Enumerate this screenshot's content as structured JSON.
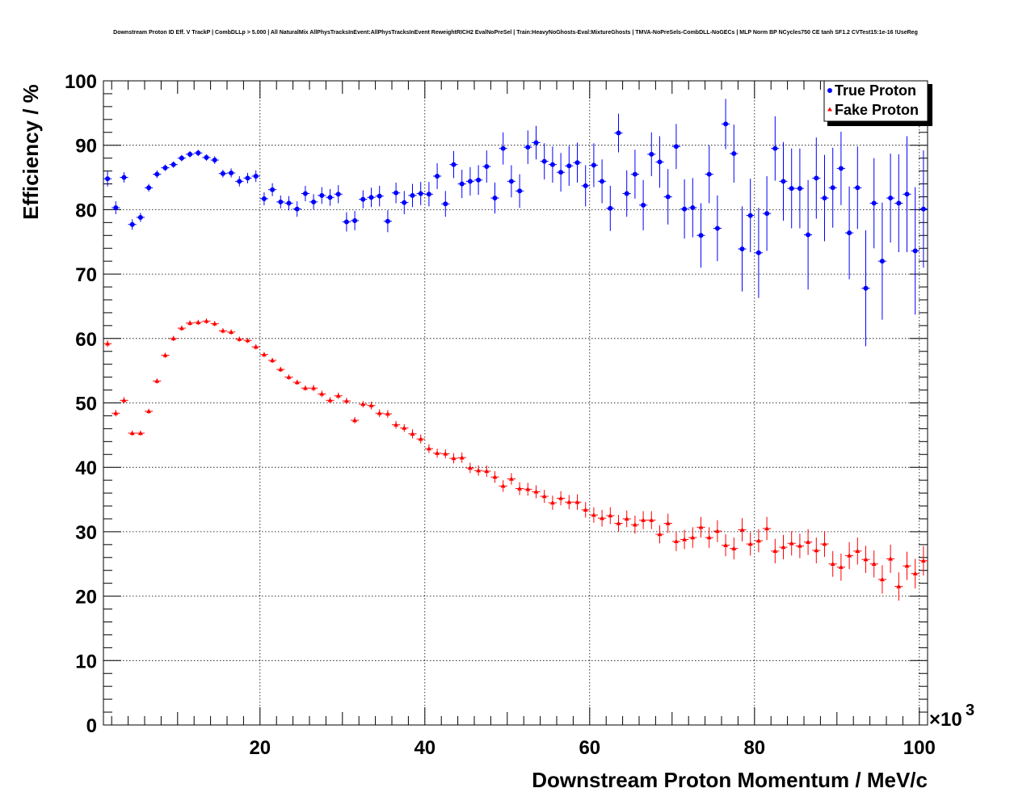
{
  "chart_data": {
    "type": "scatter",
    "title": "Downstream Proton ID Eff. V TrackP | CombDLLp > 5.000 | All NaturalMix AllPhysTracksInEvent:AllPhysTracksInEvent ReweightRICH2 EvalNoPreSel | Train:HeavyNoGhosts-Eval:MixtureGhosts | TMVA-NoPreSels-CombDLL-NoGECs | MLP Norm BP NCycles750 CE tanh SF1.2 CVTest15:1e-16 !UseReg",
    "xlabel": "Downstream Proton Momentum / MeV/c",
    "ylabel": "Efficiency / %",
    "x_multiplier_label": "×10",
    "x_multiplier_exp": "3",
    "xlim": [
      1,
      101
    ],
    "ylim": [
      0,
      100
    ],
    "x_ticks": [
      20,
      40,
      60,
      80,
      100
    ],
    "y_ticks": [
      0,
      10,
      20,
      30,
      40,
      50,
      60,
      70,
      80,
      90,
      100
    ],
    "grid": true,
    "legend_position": "top-right",
    "x": [
      1.5,
      2.5,
      3.5,
      4.5,
      5.5,
      6.5,
      7.5,
      8.5,
      9.5,
      10.5,
      11.5,
      12.5,
      13.5,
      14.5,
      15.5,
      16.5,
      17.5,
      18.5,
      19.5,
      20.5,
      21.5,
      22.5,
      23.5,
      24.5,
      25.5,
      26.5,
      27.5,
      28.5,
      29.5,
      30.5,
      31.5,
      32.5,
      33.5,
      34.5,
      35.5,
      36.5,
      37.5,
      38.5,
      39.5,
      40.5,
      41.5,
      42.5,
      43.5,
      44.5,
      45.5,
      46.5,
      47.5,
      48.5,
      49.5,
      50.5,
      51.5,
      52.5,
      53.5,
      54.5,
      55.5,
      56.5,
      57.5,
      58.5,
      59.5,
      60.5,
      61.5,
      62.5,
      63.5,
      64.5,
      65.5,
      66.5,
      67.5,
      68.5,
      69.5,
      70.5,
      71.5,
      72.5,
      73.5,
      74.5,
      75.5,
      76.5,
      77.5,
      78.5,
      79.5,
      80.5,
      81.5,
      82.5,
      83.5,
      84.5,
      85.5,
      86.5,
      87.5,
      88.5,
      89.5,
      90.5,
      91.5,
      92.5,
      93.5,
      94.5,
      95.5,
      96.5,
      97.5,
      98.5,
      99.5,
      100.5
    ],
    "series": [
      {
        "name": "True Proton",
        "color": "#0000ff",
        "marker": "circle",
        "values": [
          84.8,
          80.3,
          85.0,
          77.7,
          78.8,
          83.4,
          85.5,
          86.5,
          87.0,
          88.0,
          88.6,
          88.8,
          88.1,
          87.7,
          85.6,
          85.7,
          84.4,
          84.9,
          85.2,
          81.7,
          83.1,
          81.2,
          81.0,
          80.1,
          82.5,
          81.2,
          82.2,
          81.9,
          82.4,
          78.1,
          78.3,
          81.6,
          81.9,
          82.1,
          78.2,
          82.6,
          81.1,
          82.2,
          82.5,
          82.4,
          85.2,
          80.9,
          87.0,
          84.0,
          84.4,
          84.6,
          86.7,
          81.8,
          89.5,
          84.4,
          82.9,
          89.7,
          90.4,
          87.5,
          87.0,
          85.8,
          86.8,
          87.3,
          83.7,
          86.9,
          84.4,
          80.2,
          91.9,
          82.5,
          85.5,
          80.7,
          88.6,
          87.4,
          82.0,
          89.8,
          80.1,
          80.3,
          76.0,
          85.5,
          77.1,
          93.3,
          88.7,
          73.9,
          79.1,
          73.3,
          79.4,
          89.5,
          84.4,
          83.3,
          83.3,
          76.1,
          84.9,
          81.8,
          83.4,
          86.4,
          76.4,
          83.4,
          67.8,
          81.0,
          72.0,
          81.8,
          81.0,
          82.4,
          73.6,
          80.1
        ],
        "errors": [
          1.2,
          1.0,
          0.8,
          0.8,
          0.7,
          0.6,
          0.6,
          0.5,
          0.5,
          0.5,
          0.5,
          0.5,
          0.5,
          0.6,
          0.6,
          0.7,
          0.8,
          0.8,
          0.9,
          1.0,
          1.0,
          1.0,
          1.1,
          1.2,
          1.2,
          1.2,
          1.3,
          1.3,
          1.4,
          1.5,
          1.5,
          1.4,
          1.5,
          1.6,
          1.7,
          1.6,
          1.8,
          1.8,
          1.8,
          1.9,
          2.0,
          2.0,
          2.1,
          2.2,
          2.2,
          2.3,
          2.5,
          2.4,
          2.5,
          2.5,
          2.6,
          2.6,
          2.6,
          2.8,
          2.8,
          3.0,
          3.1,
          3.1,
          3.2,
          3.4,
          3.4,
          3.5,
          3.0,
          3.6,
          3.8,
          3.9,
          3.4,
          4.0,
          4.3,
          3.5,
          4.6,
          4.6,
          5.0,
          4.5,
          5.1,
          3.9,
          4.5,
          6.6,
          5.7,
          7.0,
          5.8,
          5.0,
          6.1,
          6.2,
          6.2,
          8.5,
          6.3,
          6.7,
          6.2,
          5.7,
          7.2,
          6.4,
          9.0,
          7.0,
          9.1,
          6.9,
          7.6,
          9.0,
          9.9,
          9.1
        ]
      },
      {
        "name": "Fake Proton",
        "color": "#ff0000",
        "marker": "triangle",
        "values": [
          59.2,
          48.4,
          50.4,
          45.3,
          45.3,
          48.7,
          53.4,
          57.4,
          60.0,
          61.6,
          62.4,
          62.5,
          62.7,
          62.3,
          61.2,
          61.0,
          59.9,
          59.7,
          58.7,
          57.5,
          56.6,
          55.2,
          54.0,
          53.2,
          52.3,
          52.3,
          51.4,
          50.4,
          51.1,
          50.3,
          47.3,
          49.8,
          49.6,
          48.4,
          48.3,
          46.6,
          46.1,
          45.2,
          44.4,
          42.9,
          42.2,
          42.1,
          41.4,
          41.5,
          39.9,
          39.5,
          39.4,
          38.5,
          37.1,
          38.2,
          36.7,
          36.6,
          36.2,
          35.5,
          34.5,
          35.2,
          34.6,
          34.6,
          33.4,
          32.6,
          32.1,
          32.5,
          31.3,
          32.0,
          31.1,
          31.8,
          31.8,
          29.6,
          31.3,
          28.5,
          28.8,
          29.1,
          30.7,
          29.1,
          30.1,
          27.9,
          27.4,
          30.3,
          28.1,
          28.6,
          30.5,
          27.0,
          27.6,
          28.2,
          27.8,
          28.4,
          27.1,
          28.1,
          25.0,
          24.5,
          26.3,
          27.0,
          25.7,
          25.0,
          22.6,
          25.8,
          21.5,
          24.7,
          23.5,
          25.5
        ],
        "errors": [
          0.5,
          0.5,
          0.5,
          0.4,
          0.4,
          0.4,
          0.4,
          0.4,
          0.4,
          0.4,
          0.4,
          0.4,
          0.4,
          0.4,
          0.4,
          0.4,
          0.4,
          0.4,
          0.4,
          0.4,
          0.4,
          0.4,
          0.4,
          0.4,
          0.4,
          0.5,
          0.5,
          0.5,
          0.5,
          0.5,
          0.5,
          0.5,
          0.6,
          0.6,
          0.6,
          0.6,
          0.6,
          0.7,
          0.7,
          0.7,
          0.7,
          0.7,
          0.8,
          0.8,
          0.8,
          0.8,
          0.9,
          0.9,
          0.9,
          0.9,
          1.0,
          1.0,
          1.0,
          1.0,
          1.1,
          1.1,
          1.1,
          1.2,
          1.2,
          1.2,
          1.3,
          1.3,
          1.3,
          1.3,
          1.4,
          1.4,
          1.4,
          1.4,
          1.5,
          1.5,
          1.5,
          1.6,
          1.6,
          1.6,
          1.7,
          1.7,
          1.7,
          1.8,
          1.8,
          1.8,
          1.8,
          1.9,
          1.9,
          1.9,
          1.9,
          2.0,
          2.0,
          2.0,
          2.0,
          2.1,
          2.1,
          2.1,
          2.1,
          2.1,
          2.2,
          2.2,
          2.2,
          2.2,
          2.3,
          2.3
        ]
      }
    ]
  }
}
